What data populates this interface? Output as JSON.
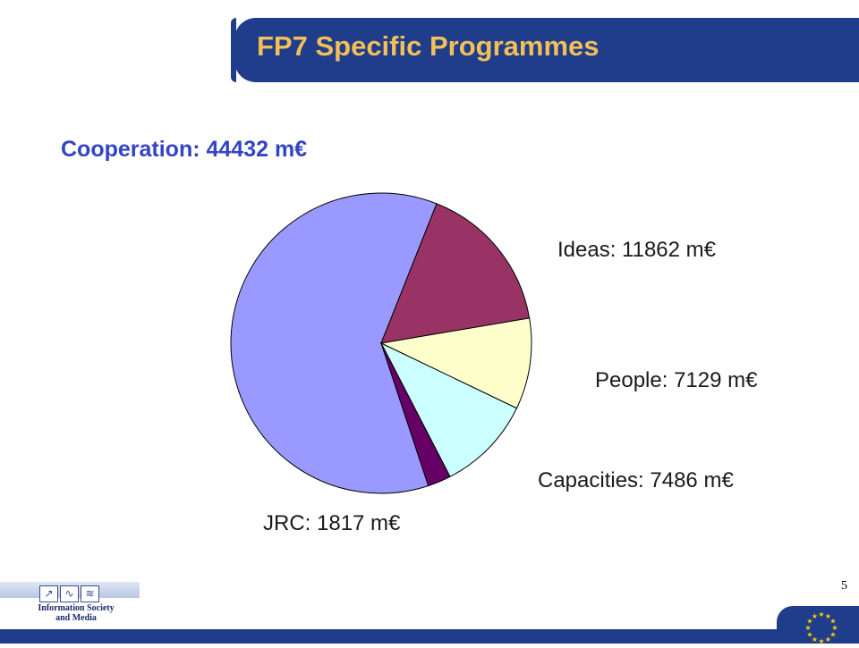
{
  "slide": {
    "title": "FP7 Specific Programmes",
    "page_number": "5"
  },
  "logo": {
    "icons": [
      "↗",
      "∿",
      "≋"
    ],
    "line1": "Information Society",
    "line2": "and Media"
  },
  "colors": {
    "title_bar": "#1f3d8a",
    "title_text": "#f2c057",
    "subtitle_text": "#3344c4"
  },
  "chart_data": {
    "type": "pie",
    "subtitle": "Cooperation: 44432 m€",
    "slices": [
      {
        "name": "Cooperation",
        "value": 44432,
        "label": "Cooperation: 44432 m€",
        "color": "#9999ff"
      },
      {
        "name": "Ideas",
        "value": 11862,
        "label": "Ideas: 11862 m€",
        "color": "#993366"
      },
      {
        "name": "People",
        "value": 7129,
        "label": "People: 7129 m€",
        "color": "#ffffcc"
      },
      {
        "name": "Capacities",
        "value": 7486,
        "label": "Capacities: 7486 m€",
        "color": "#ccffff"
      },
      {
        "name": "JRC",
        "value": 1817,
        "label": "JRC: 1817 m€",
        "color": "#660066"
      }
    ]
  }
}
